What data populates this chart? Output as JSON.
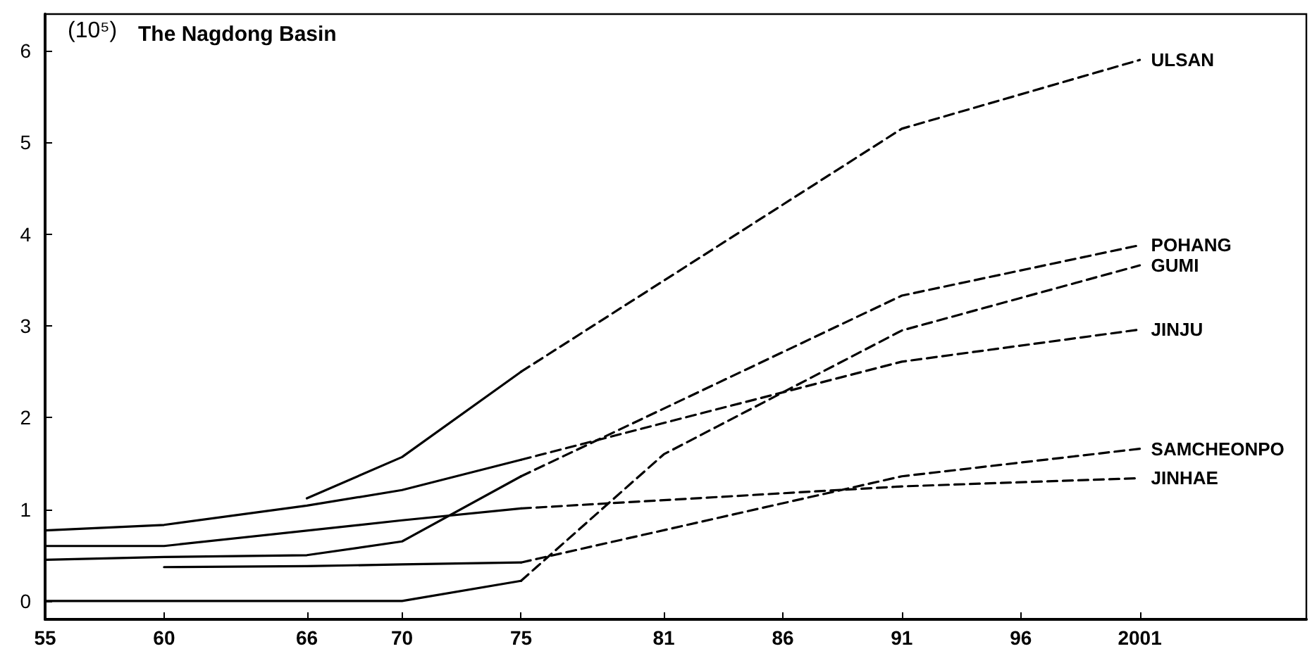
{
  "chart_data": {
    "type": "line",
    "title": "The Nagdong Basin",
    "ylabel": "(10⁵)",
    "xlim": [
      1955,
      2008
    ],
    "ylim": [
      -0.2,
      6.4
    ],
    "xticks": [
      {
        "value": 1955,
        "label": "55"
      },
      {
        "value": 1960,
        "label": "60"
      },
      {
        "value": 1966,
        "label": "66"
      },
      {
        "value": 1970,
        "label": "70"
      },
      {
        "value": 1975,
        "label": "75"
      },
      {
        "value": 1981,
        "label": "81"
      },
      {
        "value": 1986,
        "label": "86"
      },
      {
        "value": 1991,
        "label": "91"
      },
      {
        "value": 1996,
        "label": "96"
      },
      {
        "value": 2001,
        "label": "2001"
      }
    ],
    "yticks": [
      0,
      1,
      2,
      3,
      4,
      5,
      6
    ],
    "legend": false,
    "marker": "none",
    "series": [
      {
        "color": "#000000",
        "line_style": "solid",
        "x": [
          1966,
          1970,
          1975
        ],
        "values": [
          1.12,
          1.57,
          2.5
        ]
      },
      {
        "name": "ULSAN",
        "color": "#000000",
        "line_style": "dashed",
        "x": [
          1975,
          1991,
          2001
        ],
        "values": [
          2.5,
          5.15,
          5.9
        ]
      },
      {
        "color": "#000000",
        "line_style": "solid",
        "x": [
          1955,
          1960,
          1966,
          1970,
          1975
        ],
        "values": [
          0.45,
          0.48,
          0.5,
          0.65,
          1.36
        ]
      },
      {
        "name": "POHANG",
        "color": "#000000",
        "line_style": "dashed",
        "x": [
          1975,
          1991,
          2001
        ],
        "values": [
          1.36,
          3.33,
          3.88
        ]
      },
      {
        "color": "#000000",
        "line_style": "solid",
        "x": [
          1955,
          1960,
          1966,
          1970,
          1975
        ],
        "values": [
          0,
          0,
          0,
          0,
          0.22
        ]
      },
      {
        "name": "GUMI",
        "color": "#000000",
        "line_style": "dashed",
        "x": [
          1975,
          1981,
          1991,
          2001
        ],
        "values": [
          0.22,
          1.6,
          2.95,
          3.66
        ]
      },
      {
        "color": "#000000",
        "line_style": "solid",
        "x": [
          1955,
          1960,
          1966,
          1970,
          1975
        ],
        "values": [
          0.77,
          0.83,
          1.04,
          1.21,
          1.54
        ]
      },
      {
        "name": "JINJU",
        "color": "#000000",
        "line_style": "dashed",
        "x": [
          1975,
          1991,
          2001
        ],
        "values": [
          1.54,
          2.61,
          2.96
        ]
      },
      {
        "color": "#000000",
        "line_style": "solid",
        "x": [
          1960,
          1966,
          1970,
          1975
        ],
        "values": [
          0.37,
          0.38,
          0.4,
          0.42
        ]
      },
      {
        "name": "SAMCHEONPO",
        "color": "#000000",
        "line_style": "dashed",
        "x": [
          1975,
          1991,
          2001
        ],
        "values": [
          0.42,
          1.36,
          1.66
        ]
      },
      {
        "color": "#000000",
        "line_style": "solid",
        "x": [
          1955,
          1960,
          1970,
          1975
        ],
        "values": [
          0.6,
          0.6,
          0.88,
          1.01
        ]
      },
      {
        "name": "JINHAE",
        "color": "#000000",
        "line_style": "dashed",
        "x": [
          1975,
          1991,
          2001
        ],
        "values": [
          1.01,
          1.25,
          1.34
        ]
      }
    ]
  }
}
